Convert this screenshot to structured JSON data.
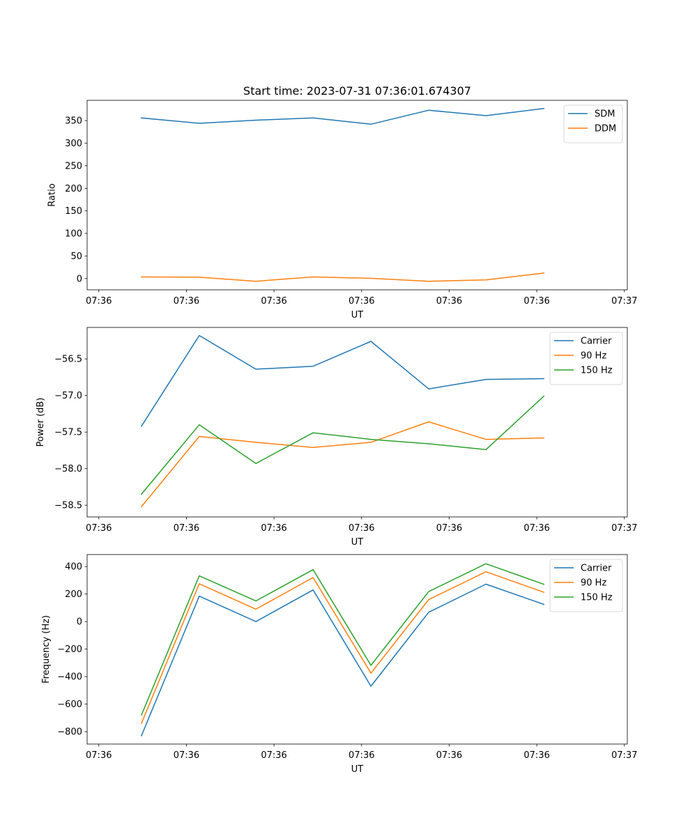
{
  "chart_data": [
    {
      "type": "line",
      "title": "Start time: 2023-07-31 07:36:01.674307",
      "xlabel": "UT",
      "ylabel": "Ratio",
      "xlim": [
        0,
        9.25
      ],
      "x_ticks": [
        0.2,
        1.7,
        3.2,
        4.7,
        6.2,
        7.7,
        9.2
      ],
      "x_tick_labels": [
        "07:36",
        "07:36",
        "07:36",
        "07:36",
        "07:36",
        "07:36",
        "07:37"
      ],
      "ylim": [
        -25,
        395
      ],
      "y_ticks": [
        0,
        50,
        100,
        150,
        200,
        250,
        300,
        350
      ],
      "y_tick_labels": [
        "0",
        "50",
        "100",
        "150",
        "200",
        "250",
        "300",
        "350"
      ],
      "grid": false,
      "legend_position": "top-right",
      "x": [
        0.93,
        1.92,
        2.89,
        3.87,
        4.86,
        5.85,
        6.83,
        7.82
      ],
      "series": [
        {
          "name": "SDM",
          "color": "#1f77b4",
          "values": [
            356,
            344,
            351,
            356,
            342,
            373,
            361,
            377
          ]
        },
        {
          "name": "DDM",
          "color": "#ff7f0e",
          "values": [
            3.5,
            3,
            -6,
            3.5,
            0.5,
            -6,
            -3,
            12
          ]
        }
      ]
    },
    {
      "type": "line",
      "title": "",
      "xlabel": "UT",
      "ylabel": "Power (dB)",
      "xlim": [
        0,
        9.25
      ],
      "x_ticks": [
        0.2,
        1.7,
        3.2,
        4.7,
        6.2,
        7.7,
        9.2
      ],
      "x_tick_labels": [
        "07:36",
        "07:36",
        "07:36",
        "07:36",
        "07:36",
        "07:36",
        "07:37"
      ],
      "ylim": [
        -58.66,
        -56.07
      ],
      "y_ticks": [
        -58.5,
        -58.0,
        -57.5,
        -57.0,
        -56.5
      ],
      "y_tick_labels": [
        "−58.5",
        "−58.0",
        "−57.5",
        "−57.0",
        "−56.5"
      ],
      "grid": false,
      "legend_position": "top-right",
      "x": [
        0.93,
        1.92,
        2.89,
        3.87,
        4.86,
        5.85,
        6.83,
        7.82
      ],
      "series": [
        {
          "name": "Carrier",
          "color": "#1f77b4",
          "values": [
            -57.42,
            -56.18,
            -56.64,
            -56.6,
            -56.26,
            -56.91,
            -56.78,
            -56.77
          ]
        },
        {
          "name": "90 Hz",
          "color": "#ff7f0e",
          "values": [
            -58.52,
            -57.56,
            -57.64,
            -57.71,
            -57.64,
            -57.36,
            -57.6,
            -57.58
          ]
        },
        {
          "name": "150 Hz",
          "color": "#2ca02c",
          "values": [
            -58.35,
            -57.4,
            -57.93,
            -57.51,
            -57.6,
            -57.66,
            -57.74,
            -57.01
          ]
        }
      ]
    },
    {
      "type": "line",
      "title": "",
      "xlabel": "UT",
      "ylabel": "Frequency (Hz)",
      "xlim": [
        0,
        9.25
      ],
      "x_ticks": [
        0.2,
        1.7,
        3.2,
        4.7,
        6.2,
        7.7,
        9.2
      ],
      "x_tick_labels": [
        "07:36",
        "07:36",
        "07:36",
        "07:36",
        "07:36",
        "07:36",
        "07:37"
      ],
      "ylim": [
        -890,
        487
      ],
      "y_ticks": [
        -800,
        -600,
        -400,
        -200,
        0,
        200,
        400
      ],
      "y_tick_labels": [
        "−800",
        "−600",
        "−400",
        "−200",
        "0",
        "200",
        "400"
      ],
      "grid": false,
      "legend_position": "top-right",
      "x": [
        0.93,
        1.92,
        2.89,
        3.87,
        4.86,
        5.85,
        6.83,
        7.82
      ],
      "series": [
        {
          "name": "Carrier",
          "color": "#1f77b4",
          "values": [
            -830,
            185,
            0,
            230,
            -470,
            68,
            272,
            125
          ]
        },
        {
          "name": "90 Hz",
          "color": "#ff7f0e",
          "values": [
            -740,
            275,
            90,
            320,
            -375,
            160,
            362,
            213
          ]
        },
        {
          "name": "150 Hz",
          "color": "#2ca02c",
          "values": [
            -680,
            332,
            150,
            377,
            -318,
            218,
            420,
            271
          ]
        }
      ]
    }
  ]
}
